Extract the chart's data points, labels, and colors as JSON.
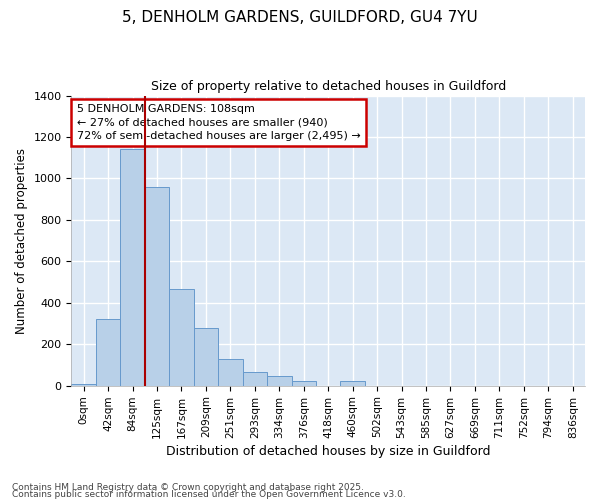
{
  "title_line1": "5, DENHOLM GARDENS, GUILDFORD, GU4 7YU",
  "title_line2": "Size of property relative to detached houses in Guildford",
  "xlabel": "Distribution of detached houses by size in Guildford",
  "ylabel": "Number of detached properties",
  "categories": [
    "0sqm",
    "42sqm",
    "84sqm",
    "125sqm",
    "167sqm",
    "209sqm",
    "251sqm",
    "293sqm",
    "334sqm",
    "376sqm",
    "418sqm",
    "460sqm",
    "502sqm",
    "543sqm",
    "585sqm",
    "627sqm",
    "669sqm",
    "711sqm",
    "752sqm",
    "794sqm",
    "836sqm"
  ],
  "bar_heights": [
    8,
    320,
    1140,
    960,
    465,
    280,
    130,
    68,
    45,
    22,
    0,
    22,
    0,
    0,
    0,
    0,
    0,
    0,
    0,
    0,
    0
  ],
  "bar_color": "#b8d0e8",
  "bar_edge_color": "#6699cc",
  "property_line_x": 2.5,
  "annotation_text": "5 DENHOLM GARDENS: 108sqm\n← 27% of detached houses are smaller (940)\n72% of semi-detached houses are larger (2,495) →",
  "annotation_box_color": "#ffffff",
  "annotation_border_color": "#cc0000",
  "vline_color": "#aa0000",
  "ylim": [
    0,
    1400
  ],
  "yticks": [
    0,
    200,
    400,
    600,
    800,
    1000,
    1200,
    1400
  ],
  "background_color": "#dce8f5",
  "plot_bg_color": "#dce8f5",
  "fig_bg_color": "#ffffff",
  "grid_color": "#ffffff",
  "footer_line1": "Contains HM Land Registry data © Crown copyright and database right 2025.",
  "footer_line2": "Contains public sector information licensed under the Open Government Licence v3.0."
}
